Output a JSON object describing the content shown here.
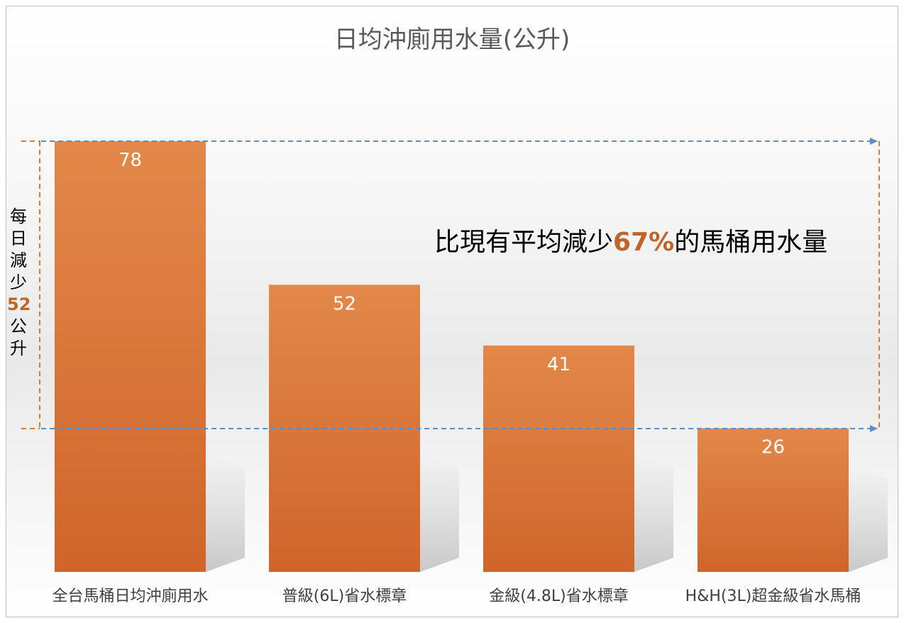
{
  "chart_data": {
    "type": "bar",
    "title": "日均沖廁用水量(公升)",
    "categories": [
      "全台馬桶日均沖廁用水",
      "普級(6L)省水標章",
      "金級(4.8L)省水標章",
      "H&H(3L)超金級省水馬桶"
    ],
    "values": [
      78,
      52,
      41,
      26
    ],
    "ylim": [
      0,
      78
    ],
    "grid": false,
    "legend": "none",
    "xlabel": "",
    "ylabel": "",
    "bar_color": "#d9733a"
  },
  "annotation": {
    "prefix": "比現有平均減少",
    "highlight": "67%",
    "suffix": "的馬桶用水量"
  },
  "side_note": {
    "chars": [
      "每",
      "日",
      "減",
      "少"
    ],
    "value": "52",
    "unit_chars": [
      "公",
      "升"
    ]
  },
  "colors": {
    "accent": "#c0652a",
    "dashed_blue": "#5b8ec9",
    "dashed_orange": "#e07a35"
  }
}
